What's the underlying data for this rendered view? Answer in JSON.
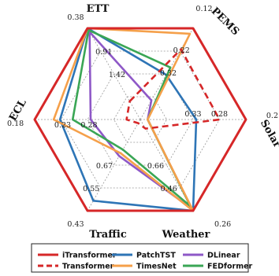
{
  "chart_data": {
    "type": "radar",
    "axes": [
      {
        "name": "ETT",
        "ticks": [
          "0.38",
          "0.91",
          "1.42"
        ],
        "outer": "0.38"
      },
      {
        "name": "PEMS",
        "ticks": [
          "0.12",
          "0.22",
          "0.32"
        ],
        "outer": "0.12"
      },
      {
        "name": "Solar",
        "ticks": [
          "0.2",
          "0.28",
          "0.33"
        ],
        "outer": "0.2"
      },
      {
        "name": "Weather",
        "ticks": [
          "0.26",
          "0.46",
          "0.66"
        ],
        "outer": "0.26"
      },
      {
        "name": "Traffic",
        "ticks": [
          "0.43",
          "0.55",
          "0.67"
        ],
        "outer": "0.43"
      },
      {
        "name": "ECL",
        "ticks": [
          "0.18",
          "0.23",
          "0.28"
        ],
        "outer": "0.18"
      }
    ],
    "note_scale": "radial position is a normalized score (1 = outer hexagon, best); axes are reversed error metrics",
    "series": [
      {
        "name": "iTransformer",
        "color": "#d62728",
        "dash": false,
        "values": [
          1.0,
          1.0,
          1.0,
          1.0,
          1.0,
          1.0
        ]
      },
      {
        "name": "Transformer",
        "color": "#d62728",
        "dash": true,
        "values": [
          0.2,
          0.77,
          0.75,
          0.1,
          0.04,
          0.13
        ]
      },
      {
        "name": "PatchTST",
        "color": "#2e75b6",
        "dash": false,
        "values": [
          1.0,
          0.49,
          0.53,
          1.0,
          0.89,
          0.76
        ]
      },
      {
        "name": "TimesNet",
        "color": "#f5a04a",
        "dash": false,
        "values": [
          1.0,
          0.94,
          0.07,
          1.0,
          0.37,
          0.82
        ]
      },
      {
        "name": "DLinear",
        "color": "#8e58c7",
        "dash": false,
        "values": [
          0.96,
          0.21,
          0.07,
          0.98,
          0.4,
          0.47
        ]
      },
      {
        "name": "FEDformer",
        "color": "#3aa655",
        "dash": false,
        "values": [
          0.98,
          0.57,
          0.07,
          0.95,
          0.33,
          0.64
        ]
      }
    ],
    "legend": {
      "placement": "bottom",
      "columns": 3,
      "order": [
        "iTransformer",
        "PatchTST",
        "DLinear",
        "Transformer",
        "TimesNet",
        "FEDformer"
      ]
    },
    "grid": true
  }
}
